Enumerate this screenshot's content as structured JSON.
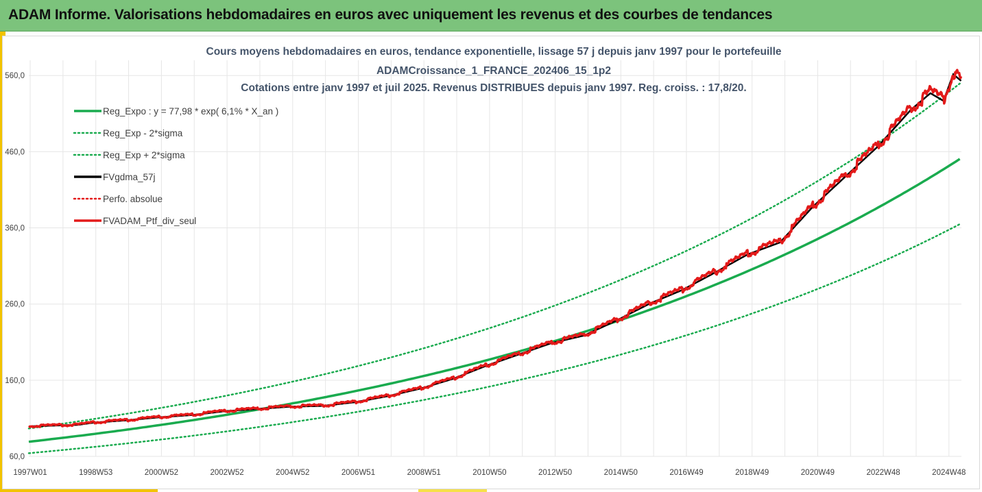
{
  "header": {
    "title": "ADAM Informe. Valorisations hebdomadaires en euros avec uniquement les revenus et des courbes de tendances"
  },
  "chart_data": {
    "type": "line",
    "title_lines": [
      "Cours moyens hebdomadaires  en euros, tendance exponentielle, lissage 57 j depuis janv 1997 pour le portefeuille",
      "ADAMCroissance_1_FRANCE_202406_15_1p2",
      "Cotations  entre janv 1997 et juil 2025. Revenus DISTRIBUES depuis janv 1997. Reg. croiss. : 17,8/20."
    ],
    "xlabel": "",
    "ylabel": "",
    "x_ticks": [
      "1997W01",
      "1998W53",
      "2000W52",
      "2002W52",
      "2004W52",
      "2006W51",
      "2008W51",
      "2010W50",
      "2012W50",
      "2014W50",
      "2016W49",
      "2018W49",
      "2020W49",
      "2022W48",
      "2024W48"
    ],
    "x_range": [
      1997.0,
      2025.55
    ],
    "ylim": [
      60,
      580
    ],
    "y_ticks": [
      60,
      160,
      260,
      360,
      460,
      560
    ],
    "y_tick_labels": [
      "60,0",
      "160,0",
      "260,0",
      "360,0",
      "460,0",
      "560,0"
    ],
    "grid": true,
    "legend_position": "top-left",
    "legend": [
      {
        "label": "Reg_Expo : y = 77,98 * exp( 6,1% *  X_an )",
        "color": "#1aab4f",
        "style": "solid"
      },
      {
        "label": "Reg_Exp - 2*sigma",
        "color": "#1aab4f",
        "style": "dotted"
      },
      {
        "label": "Reg_Exp + 2*sigma",
        "color": "#1aab4f",
        "style": "dotted"
      },
      {
        "label": "FVgdma_57j",
        "color": "#000000",
        "style": "solid"
      },
      {
        "label": "Perfo. absolue",
        "color": "#e31a1a",
        "style": "dotted"
      },
      {
        "label": "FVADAM_Ptf_div_seul",
        "color": "#e31a1a",
        "style": "solid"
      }
    ],
    "regression": {
      "a": 77.98,
      "rate": 0.061,
      "lower_factor": 0.81,
      "upper_factor": 1.22
    },
    "series_points": {
      "x": [
        1997.0,
        1998.5,
        1999.0,
        2000.0,
        2001.0,
        2002.0,
        2003.0,
        2004.0,
        2005.0,
        2006.0,
        2007.0,
        2008.0,
        2009.0,
        2010.0,
        2011.0,
        2012.0,
        2013.0,
        2014.0,
        2015.0,
        2016.0,
        2017.0,
        2018.0,
        2019.0,
        2020.0,
        2021.0,
        2022.0,
        2023.0,
        2024.0,
        2024.6,
        2025.0,
        2025.3,
        2025.55
      ],
      "y": [
        100,
        102,
        105,
        108,
        112,
        115,
        120,
        123,
        126,
        127,
        132,
        140,
        150,
        163,
        180,
        195,
        210,
        220,
        240,
        262,
        280,
        303,
        327,
        343,
        390,
        430,
        470,
        518,
        540,
        530,
        565,
        556
      ]
    },
    "colors": {
      "trend": "#1aab4f",
      "portfolio": "#e31a1a",
      "smoothed": "#000000",
      "grid": "#e6e6e6"
    }
  }
}
